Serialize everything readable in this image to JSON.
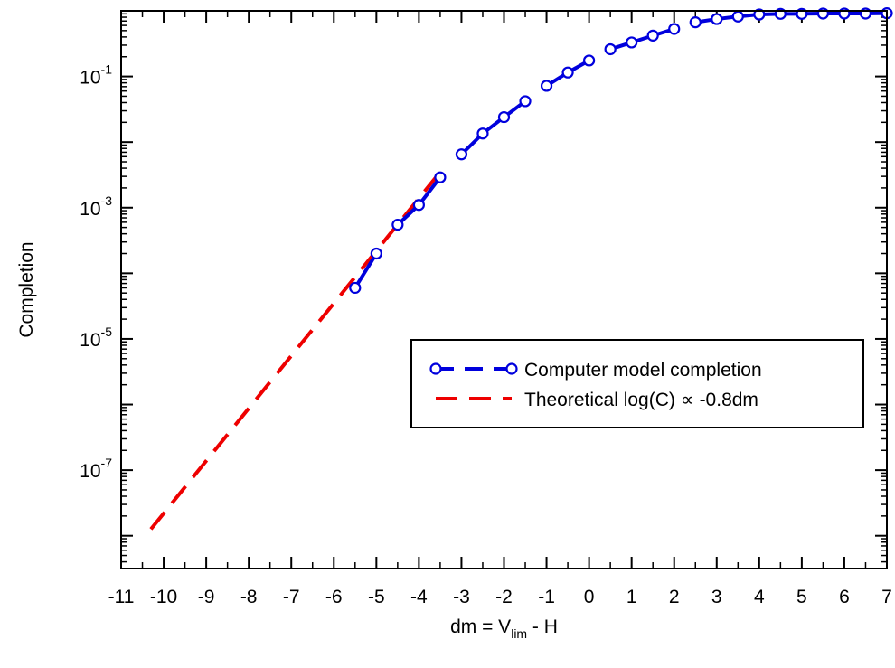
{
  "chart_data": {
    "type": "line",
    "title": "",
    "xlabel_parts": {
      "main": "dm = V",
      "sub": "lim",
      "tail": " - H"
    },
    "ylabel": "Completion",
    "xlim": [
      -11,
      7
    ],
    "ylim_log10": [
      -8.5,
      0
    ],
    "yscale": "log",
    "x_ticks": [
      -11,
      -10,
      -9,
      -8,
      -7,
      -6,
      -5,
      -4,
      -3,
      -2,
      -1,
      0,
      1,
      2,
      3,
      4,
      5,
      6,
      7
    ],
    "x_tick_labels": [
      "-11",
      "-10",
      "-9",
      "-8",
      "-7",
      "-6",
      "-5",
      "-4",
      "-3",
      "-2",
      "-1",
      "0",
      "1",
      "2",
      "3",
      "4",
      "5",
      "6",
      "7"
    ],
    "y_ticks": [
      {
        "base": "10",
        "exp": "-1",
        "log10": -1
      },
      {
        "base": "10",
        "exp": "-3",
        "log10": -3
      },
      {
        "base": "10",
        "exp": "-5",
        "log10": -5
      },
      {
        "base": "10",
        "exp": "-7",
        "log10": -7
      }
    ],
    "legend_position": "right",
    "series": [
      {
        "name": "Computer model completion",
        "color": "#0000dd",
        "style": "solid-with-gaps",
        "marker": "open-circle",
        "x": [
          -5.5,
          -5.0,
          -4.5,
          -4.0,
          -3.5,
          -3.0,
          -2.5,
          -2.0,
          -1.5,
          -1.0,
          -0.5,
          0.0,
          0.5,
          1.0,
          1.5,
          2.0,
          2.5,
          3.0,
          3.5,
          4.0,
          4.5,
          5.0,
          5.5,
          6.0,
          6.5,
          7.0
        ],
        "y": [
          6e-05,
          0.0002,
          0.00055,
          0.0011,
          0.0029,
          0.0065,
          0.0135,
          0.024,
          0.042,
          0.072,
          0.115,
          0.175,
          0.26,
          0.33,
          0.42,
          0.53,
          0.67,
          0.75,
          0.82,
          0.88,
          0.9,
          0.9,
          0.91,
          0.91,
          0.91,
          0.92
        ],
        "segments": [
          [
            0,
            1
          ],
          [
            2,
            4
          ],
          [
            5,
            8
          ],
          [
            9,
            11
          ],
          [
            12,
            15
          ],
          [
            16,
            25
          ]
        ]
      },
      {
        "name": "Theoretical log(C) ∝ -0.8dm",
        "color": "#ee0000",
        "style": "dashed",
        "x": [
          -10.3,
          -3.5
        ],
        "y": [
          1.26e-08,
          0.0035
        ]
      }
    ],
    "legend": [
      {
        "label": "Computer model completion"
      },
      {
        "label": "Theoretical log(C) ∝ -0.8dm"
      }
    ]
  }
}
